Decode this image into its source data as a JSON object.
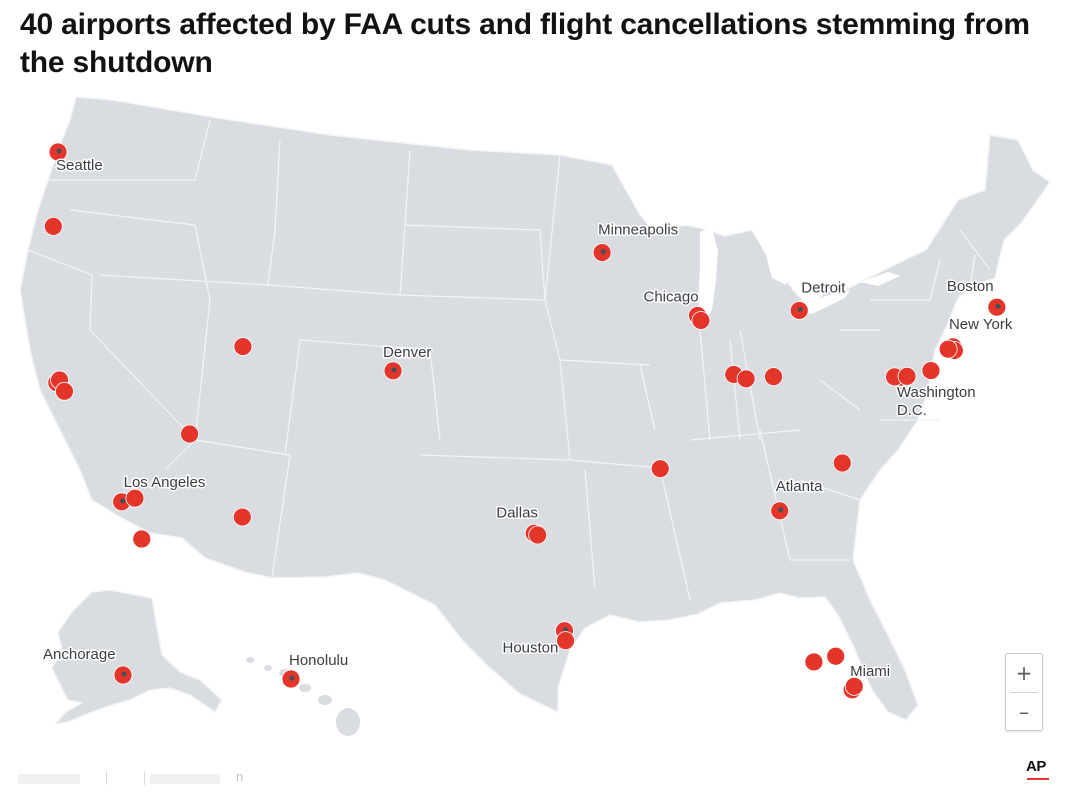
{
  "title": "40 airports affected by FAA cuts and flight cancellations stemming from the shutdown",
  "colors": {
    "land": "#d9dce1",
    "border": "#f3f4f6",
    "marker": "#e4352b",
    "marker_center": "#4a4f57",
    "label": "#3a3d42"
  },
  "airports": [
    {
      "city": "Seattle",
      "lon": -122.31,
      "lat": 47.45
    },
    {
      "city": "",
      "lon": -122.6,
      "lat": 45.59
    },
    {
      "city": "",
      "lon": -122.38,
      "lat": 37.62
    },
    {
      "city": "",
      "lon": -122.22,
      "lat": 37.72
    },
    {
      "city": "",
      "lon": -121.93,
      "lat": 37.36
    },
    {
      "city": "",
      "lon": -111.98,
      "lat": 40.79
    },
    {
      "city": "",
      "lon": -115.15,
      "lat": 36.08
    },
    {
      "city": "Los Angeles",
      "lon": -118.41,
      "lat": 33.94
    },
    {
      "city": "",
      "lon": -117.6,
      "lat": 34.06
    },
    {
      "city": "",
      "lon": -117.19,
      "lat": 32.73
    },
    {
      "city": "",
      "lon": -112.01,
      "lat": 33.43
    },
    {
      "city": "Denver",
      "lon": -104.67,
      "lat": 39.86
    },
    {
      "city": "Dallas",
      "lon": -97.04,
      "lat": 32.9
    },
    {
      "city": "",
      "lon": -96.85,
      "lat": 32.85
    },
    {
      "city": "Houston",
      "lon": -95.34,
      "lat": 29.98
    },
    {
      "city": "",
      "lon": -95.28,
      "lat": 29.65
    },
    {
      "city": "Minneapolis",
      "lon": -93.22,
      "lat": 44.88
    },
    {
      "city": "Chicago",
      "lon": -87.9,
      "lat": 41.98
    },
    {
      "city": "",
      "lon": -87.75,
      "lat": 41.79
    },
    {
      "city": "Detroit",
      "lon": -83.35,
      "lat": 42.21
    },
    {
      "city": "",
      "lon": -86.29,
      "lat": 39.72
    },
    {
      "city": "",
      "lon": -84.67,
      "lat": 39.05
    },
    {
      "city": "",
      "lon": -85.74,
      "lat": 38.17
    },
    {
      "city": "",
      "lon": -89.98,
      "lat": 35.04
    },
    {
      "city": "Atlanta",
      "lon": -84.43,
      "lat": 33.64
    },
    {
      "city": "",
      "lon": -80.94,
      "lat": 35.21
    },
    {
      "city": "",
      "lon": -81.31,
      "lat": 28.43
    },
    {
      "city": "",
      "lon": -82.53,
      "lat": 27.98
    },
    {
      "city": "Miami",
      "lon": -80.29,
      "lat": 25.8
    },
    {
      "city": "",
      "lon": -80.15,
      "lat": 26.07
    },
    {
      "city": "Washington D.C.",
      "lon": -77.04,
      "lat": 38.85
    },
    {
      "city": "",
      "lon": -77.46,
      "lat": 38.95
    },
    {
      "city": "",
      "lon": -76.67,
      "lat": 39.18
    },
    {
      "city": "",
      "lon": -75.24,
      "lat": 39.87
    },
    {
      "city": "New York",
      "lon": -73.87,
      "lat": 40.78
    },
    {
      "city": "",
      "lon": -73.78,
      "lat": 40.64
    },
    {
      "city": "",
      "lon": -74.17,
      "lat": 40.69
    },
    {
      "city": "Boston",
      "lon": -71.01,
      "lat": 42.36
    },
    {
      "city": "Anchorage",
      "lon": -149.99,
      "lat": 61.17
    },
    {
      "city": "Honolulu",
      "lon": -157.92,
      "lat": 21.32
    }
  ],
  "zoom_controls": {
    "zoom_in": "+",
    "zoom_out": "–"
  },
  "credit": "AP",
  "attribution_fragment": "n"
}
